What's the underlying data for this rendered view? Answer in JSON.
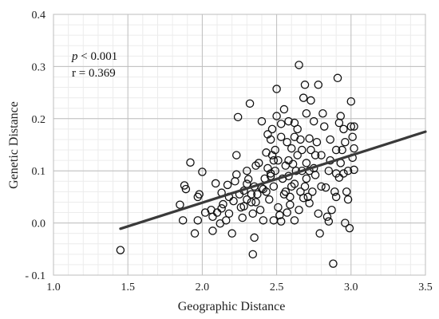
{
  "chart_data": {
    "type": "scatter",
    "title": "",
    "xlabel": "Geographic Distance",
    "ylabel": "Genetic Distance",
    "xlim": [
      1.0,
      3.5
    ],
    "ylim": [
      -0.1,
      0.4
    ],
    "x_ticks": [
      "1.0",
      "1.5",
      "2.0",
      "2.5",
      "3.0",
      "3.5"
    ],
    "y_ticks": [
      "- 0.1",
      "0.0",
      "0.1",
      "0.2",
      "0.3",
      "0.4"
    ],
    "grid": true,
    "minor_grid": true,
    "annotations": {
      "p_symbol": "p",
      "p_rest": " < 0.001",
      "r_text": "r = 0.369"
    },
    "trendline": {
      "x": [
        1.45,
        3.5
      ],
      "y": [
        -0.011,
        0.175
      ]
    },
    "points": [
      [
        1.45,
        -0.052
      ],
      [
        1.85,
        0.035
      ],
      [
        1.88,
        0.072
      ],
      [
        1.89,
        0.065
      ],
      [
        1.87,
        0.005
      ],
      [
        1.92,
        0.116
      ],
      [
        1.95,
        -0.02
      ],
      [
        1.97,
        0.005
      ],
      [
        1.97,
        0.05
      ],
      [
        1.98,
        0.055
      ],
      [
        2.0,
        0.098
      ],
      [
        2.02,
        0.02
      ],
      [
        2.06,
        0.025
      ],
      [
        2.07,
        -0.015
      ],
      [
        2.07,
        0.012
      ],
      [
        2.09,
        0.076
      ],
      [
        2.1,
        0.02
      ],
      [
        2.12,
        -0.001
      ],
      [
        2.13,
        0.028
      ],
      [
        2.13,
        0.058
      ],
      [
        2.14,
        0.036
      ],
      [
        2.16,
        0.005
      ],
      [
        2.17,
        0.073
      ],
      [
        2.18,
        0.05
      ],
      [
        2.18,
        0.018
      ],
      [
        2.2,
        -0.02
      ],
      [
        2.21,
        0.042
      ],
      [
        2.22,
        0.08
      ],
      [
        2.23,
        0.093
      ],
      [
        2.23,
        0.13
      ],
      [
        2.24,
        0.203
      ],
      [
        2.25,
        0.055
      ],
      [
        2.26,
        0.03
      ],
      [
        2.27,
        0.01
      ],
      [
        2.28,
        0.062
      ],
      [
        2.3,
        0.045
      ],
      [
        2.3,
        0.1
      ],
      [
        2.31,
        0.084
      ],
      [
        2.32,
        0.229
      ],
      [
        2.33,
        0.04
      ],
      [
        2.34,
        0.018
      ],
      [
        2.34,
        -0.06
      ],
      [
        2.35,
        -0.028
      ],
      [
        2.35,
        0.07
      ],
      [
        2.36,
        0.11
      ],
      [
        2.37,
        0.055
      ],
      [
        2.38,
        0.115
      ],
      [
        2.39,
        0.025
      ],
      [
        2.4,
        0.067
      ],
      [
        2.4,
        0.195
      ],
      [
        2.41,
        0.005
      ],
      [
        2.42,
        0.085
      ],
      [
        2.43,
        0.135
      ],
      [
        2.43,
        0.06
      ],
      [
        2.44,
        0.105
      ],
      [
        2.45,
        0.045
      ],
      [
        2.46,
        0.09
      ],
      [
        2.46,
        0.16
      ],
      [
        2.47,
        0.13
      ],
      [
        2.47,
        0.18
      ],
      [
        2.48,
        0.005
      ],
      [
        2.48,
        0.07
      ],
      [
        2.49,
        0.1
      ],
      [
        2.49,
        0.14
      ],
      [
        2.5,
        0.205
      ],
      [
        2.5,
        0.257
      ],
      [
        2.51,
        0.03
      ],
      [
        2.51,
        0.12
      ],
      [
        2.52,
        0.015
      ],
      [
        2.53,
        0.003
      ],
      [
        2.53,
        0.19
      ],
      [
        2.54,
        0.085
      ],
      [
        2.55,
        0.218
      ],
      [
        2.55,
        0.055
      ],
      [
        2.56,
        0.11
      ],
      [
        2.57,
        0.155
      ],
      [
        2.57,
        0.02
      ],
      [
        2.58,
        0.195
      ],
      [
        2.58,
        0.09
      ],
      [
        2.59,
        0.035
      ],
      [
        2.6,
        0.143
      ],
      [
        2.6,
        0.07
      ],
      [
        2.61,
        0.113
      ],
      [
        2.62,
        0.005
      ],
      [
        2.62,
        0.192
      ],
      [
        2.62,
        0.165
      ],
      [
        2.63,
        0.1
      ],
      [
        2.64,
        0.18
      ],
      [
        2.64,
        0.13
      ],
      [
        2.65,
        0.303
      ],
      [
        2.65,
        0.025
      ],
      [
        2.66,
        0.06
      ],
      [
        2.67,
        0.14
      ],
      [
        2.67,
        0.1
      ],
      [
        2.68,
        0.048
      ],
      [
        2.68,
        0.24
      ],
      [
        2.69,
        0.265
      ],
      [
        2.7,
        0.21
      ],
      [
        2.7,
        0.115
      ],
      [
        2.7,
        0.085
      ],
      [
        2.71,
        0.05
      ],
      [
        2.72,
        0.162
      ],
      [
        2.72,
        0.038
      ],
      [
        2.73,
        0.235
      ],
      [
        2.73,
        0.14
      ],
      [
        2.74,
        0.06
      ],
      [
        2.75,
        0.105
      ],
      [
        2.75,
        0.195
      ],
      [
        2.76,
        0.13
      ],
      [
        2.77,
        0.155
      ],
      [
        2.78,
        0.018
      ],
      [
        2.78,
        0.265
      ],
      [
        2.79,
        -0.02
      ],
      [
        2.8,
        0.07
      ],
      [
        2.8,
        0.13
      ],
      [
        2.81,
        0.21
      ],
      [
        2.82,
        0.185
      ],
      [
        2.83,
        0.068
      ],
      [
        2.84,
        0.012
      ],
      [
        2.85,
        0.003
      ],
      [
        2.85,
        0.1
      ],
      [
        2.86,
        0.16
      ],
      [
        2.87,
        0.025
      ],
      [
        2.88,
        -0.078
      ],
      [
        2.89,
        0.06
      ],
      [
        2.9,
        0.14
      ],
      [
        2.9,
        0.05
      ],
      [
        2.9,
        0.095
      ],
      [
        2.91,
        0.278
      ],
      [
        2.92,
        0.087
      ],
      [
        2.92,
        0.192
      ],
      [
        2.93,
        0.115
      ],
      [
        2.93,
        0.205
      ],
      [
        2.94,
        0.14
      ],
      [
        2.95,
        0.18
      ],
      [
        2.95,
        0.095
      ],
      [
        2.96,
        0.155
      ],
      [
        2.96,
        0.0
      ],
      [
        2.97,
        0.06
      ],
      [
        2.98,
        0.1
      ],
      [
        2.98,
        0.045
      ],
      [
        2.99,
        -0.01
      ],
      [
        3.0,
        0.233
      ],
      [
        3.0,
        0.185
      ],
      [
        3.01,
        0.125
      ],
      [
        3.01,
        0.165
      ],
      [
        3.02,
        0.185
      ],
      [
        3.02,
        0.143
      ],
      [
        3.02,
        0.102
      ],
      [
        2.46,
        0.095
      ],
      [
        2.53,
        0.165
      ],
      [
        2.36,
        0.04
      ],
      [
        2.58,
        0.12
      ],
      [
        2.62,
        0.075
      ],
      [
        2.66,
        0.16
      ],
      [
        2.44,
        0.17
      ],
      [
        2.28,
        0.032
      ],
      [
        2.33,
        0.055
      ],
      [
        2.56,
        0.06
      ],
      [
        2.72,
        0.1
      ],
      [
        2.69,
        0.07
      ],
      [
        2.48,
        0.12
      ],
      [
        2.59,
        0.05
      ],
      [
        2.41,
        0.065
      ],
      [
        2.3,
        0.075
      ],
      [
        2.76,
        0.092
      ],
      [
        2.86,
        0.12
      ]
    ]
  }
}
